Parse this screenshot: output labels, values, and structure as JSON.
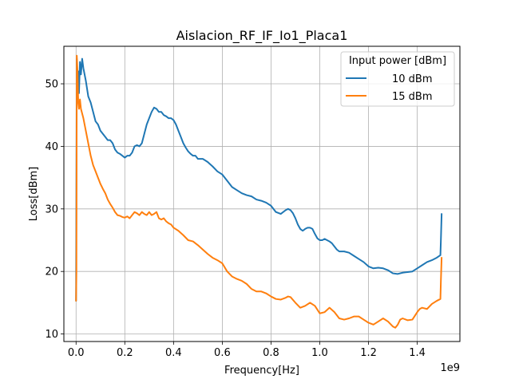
{
  "chart_data": {
    "type": "line",
    "title": "Aislacion_RF_IF_Io1_Placa1",
    "xlabel": "Frequency[Hz]",
    "ylabel": "Loss[dBm]",
    "x_offset_label": "1e9",
    "x_scale": 1000000000,
    "xlim": [
      -50000000,
      1575000000
    ],
    "ylim": [
      8.8,
      56.0
    ],
    "xticks": [
      0,
      200000000,
      400000000,
      600000000,
      800000000,
      1000000000,
      1200000000,
      1400000000
    ],
    "xtick_labels": [
      "0.0",
      "0.2",
      "0.4",
      "0.6",
      "0.8",
      "1.0",
      "1.2",
      "1.4"
    ],
    "yticks": [
      10,
      20,
      30,
      40,
      50
    ],
    "ytick_labels": [
      "10",
      "20",
      "30",
      "40",
      "50"
    ],
    "grid": true,
    "legend": {
      "title": "Input power [dBm]",
      "placement": "top-right"
    },
    "series": [
      {
        "name": "10 dBm",
        "color": "#1f77b4",
        "points": [
          [
            0,
            15.3
          ],
          [
            3000000,
            54.0
          ],
          [
            6000000,
            49.0
          ],
          [
            9000000,
            52.0
          ],
          [
            12000000,
            48.5
          ],
          [
            16000000,
            53.5
          ],
          [
            20000000,
            51.5
          ],
          [
            25000000,
            54.0
          ],
          [
            30000000,
            52.5
          ],
          [
            40000000,
            50.5
          ],
          [
            50000000,
            48.0
          ],
          [
            60000000,
            47.0
          ],
          [
            70000000,
            45.5
          ],
          [
            80000000,
            44.0
          ],
          [
            90000000,
            43.5
          ],
          [
            100000000,
            42.5
          ],
          [
            110000000,
            42.0
          ],
          [
            120000000,
            41.5
          ],
          [
            130000000,
            41.0
          ],
          [
            140000000,
            41.0
          ],
          [
            150000000,
            40.5
          ],
          [
            160000000,
            39.5
          ],
          [
            170000000,
            39.0
          ],
          [
            180000000,
            38.8
          ],
          [
            190000000,
            38.5
          ],
          [
            200000000,
            38.2
          ],
          [
            210000000,
            38.5
          ],
          [
            220000000,
            38.5
          ],
          [
            230000000,
            39.0
          ],
          [
            240000000,
            40.0
          ],
          [
            250000000,
            40.2
          ],
          [
            260000000,
            40.0
          ],
          [
            270000000,
            40.5
          ],
          [
            280000000,
            42.0
          ],
          [
            290000000,
            43.5
          ],
          [
            300000000,
            44.5
          ],
          [
            310000000,
            45.5
          ],
          [
            320000000,
            46.2
          ],
          [
            330000000,
            46.0
          ],
          [
            340000000,
            45.5
          ],
          [
            350000000,
            45.5
          ],
          [
            360000000,
            45.0
          ],
          [
            370000000,
            44.8
          ],
          [
            380000000,
            44.5
          ],
          [
            390000000,
            44.5
          ],
          [
            400000000,
            44.2
          ],
          [
            410000000,
            43.5
          ],
          [
            420000000,
            42.5
          ],
          [
            430000000,
            41.5
          ],
          [
            440000000,
            40.5
          ],
          [
            450000000,
            39.8
          ],
          [
            460000000,
            39.2
          ],
          [
            470000000,
            38.8
          ],
          [
            480000000,
            38.5
          ],
          [
            490000000,
            38.5
          ],
          [
            500000000,
            38.0
          ],
          [
            520000000,
            38.0
          ],
          [
            540000000,
            37.5
          ],
          [
            560000000,
            36.8
          ],
          [
            580000000,
            36.0
          ],
          [
            600000000,
            35.5
          ],
          [
            620000000,
            34.5
          ],
          [
            640000000,
            33.5
          ],
          [
            660000000,
            33.0
          ],
          [
            680000000,
            32.5
          ],
          [
            700000000,
            32.2
          ],
          [
            720000000,
            32.0
          ],
          [
            740000000,
            31.5
          ],
          [
            760000000,
            31.3
          ],
          [
            780000000,
            31.0
          ],
          [
            800000000,
            30.5
          ],
          [
            820000000,
            29.5
          ],
          [
            840000000,
            29.2
          ],
          [
            860000000,
            29.8
          ],
          [
            870000000,
            30.0
          ],
          [
            880000000,
            29.8
          ],
          [
            890000000,
            29.3
          ],
          [
            900000000,
            28.5
          ],
          [
            910000000,
            27.5
          ],
          [
            920000000,
            26.8
          ],
          [
            930000000,
            26.5
          ],
          [
            940000000,
            26.8
          ],
          [
            950000000,
            27.0
          ],
          [
            960000000,
            27.0
          ],
          [
            970000000,
            26.8
          ],
          [
            980000000,
            26.0
          ],
          [
            990000000,
            25.3
          ],
          [
            1000000000,
            25.0
          ],
          [
            1010000000,
            25.0
          ],
          [
            1020000000,
            25.2
          ],
          [
            1030000000,
            25.0
          ],
          [
            1040000000,
            24.8
          ],
          [
            1050000000,
            24.5
          ],
          [
            1060000000,
            24.0
          ],
          [
            1070000000,
            23.5
          ],
          [
            1080000000,
            23.2
          ],
          [
            1100000000,
            23.2
          ],
          [
            1120000000,
            23.0
          ],
          [
            1140000000,
            22.5
          ],
          [
            1160000000,
            22.0
          ],
          [
            1180000000,
            21.5
          ],
          [
            1200000000,
            20.8
          ],
          [
            1220000000,
            20.5
          ],
          [
            1240000000,
            20.6
          ],
          [
            1260000000,
            20.5
          ],
          [
            1280000000,
            20.2
          ],
          [
            1300000000,
            19.7
          ],
          [
            1320000000,
            19.6
          ],
          [
            1340000000,
            19.8
          ],
          [
            1360000000,
            19.9
          ],
          [
            1380000000,
            20.0
          ],
          [
            1400000000,
            20.5
          ],
          [
            1420000000,
            21.0
          ],
          [
            1440000000,
            21.5
          ],
          [
            1460000000,
            21.8
          ],
          [
            1480000000,
            22.2
          ],
          [
            1495000000,
            22.6
          ],
          [
            1497000000,
            25.0
          ],
          [
            1500000000,
            29.2
          ]
        ]
      },
      {
        "name": "15 dBm",
        "color": "#ff7f0e",
        "points": [
          [
            0,
            15.3
          ],
          [
            1500000,
            20.0
          ],
          [
            3000000,
            54.5
          ],
          [
            6000000,
            52.0
          ],
          [
            9000000,
            47.0
          ],
          [
            12000000,
            46.0
          ],
          [
            16000000,
            47.5
          ],
          [
            20000000,
            46.0
          ],
          [
            30000000,
            44.5
          ],
          [
            40000000,
            42.5
          ],
          [
            50000000,
            40.5
          ],
          [
            60000000,
            38.5
          ],
          [
            70000000,
            37.0
          ],
          [
            80000000,
            36.0
          ],
          [
            90000000,
            35.0
          ],
          [
            100000000,
            34.0
          ],
          [
            110000000,
            33.2
          ],
          [
            120000000,
            32.5
          ],
          [
            130000000,
            31.5
          ],
          [
            140000000,
            30.8
          ],
          [
            150000000,
            30.2
          ],
          [
            160000000,
            29.5
          ],
          [
            170000000,
            29.0
          ],
          [
            180000000,
            28.9
          ],
          [
            190000000,
            28.7
          ],
          [
            200000000,
            28.6
          ],
          [
            210000000,
            28.8
          ],
          [
            220000000,
            28.5
          ],
          [
            230000000,
            29.0
          ],
          [
            240000000,
            29.5
          ],
          [
            250000000,
            29.3
          ],
          [
            260000000,
            29.0
          ],
          [
            270000000,
            29.5
          ],
          [
            280000000,
            29.2
          ],
          [
            290000000,
            29.0
          ],
          [
            300000000,
            29.5
          ],
          [
            310000000,
            29.0
          ],
          [
            320000000,
            29.2
          ],
          [
            330000000,
            29.5
          ],
          [
            340000000,
            28.5
          ],
          [
            350000000,
            28.3
          ],
          [
            360000000,
            28.5
          ],
          [
            370000000,
            28.0
          ],
          [
            380000000,
            27.7
          ],
          [
            390000000,
            27.5
          ],
          [
            400000000,
            27.0
          ],
          [
            420000000,
            26.5
          ],
          [
            440000000,
            25.8
          ],
          [
            460000000,
            25.0
          ],
          [
            480000000,
            24.8
          ],
          [
            500000000,
            24.2
          ],
          [
            520000000,
            23.5
          ],
          [
            540000000,
            22.8
          ],
          [
            560000000,
            22.2
          ],
          [
            580000000,
            21.8
          ],
          [
            600000000,
            21.3
          ],
          [
            620000000,
            20.0
          ],
          [
            640000000,
            19.2
          ],
          [
            660000000,
            18.8
          ],
          [
            680000000,
            18.5
          ],
          [
            700000000,
            18.0
          ],
          [
            720000000,
            17.2
          ],
          [
            740000000,
            16.8
          ],
          [
            760000000,
            16.8
          ],
          [
            780000000,
            16.5
          ],
          [
            800000000,
            16.0
          ],
          [
            820000000,
            15.6
          ],
          [
            840000000,
            15.5
          ],
          [
            860000000,
            15.8
          ],
          [
            870000000,
            16.0
          ],
          [
            880000000,
            15.9
          ],
          [
            900000000,
            15.0
          ],
          [
            920000000,
            14.2
          ],
          [
            940000000,
            14.5
          ],
          [
            960000000,
            15.0
          ],
          [
            980000000,
            14.5
          ],
          [
            1000000000,
            13.3
          ],
          [
            1020000000,
            13.5
          ],
          [
            1040000000,
            14.2
          ],
          [
            1060000000,
            13.5
          ],
          [
            1080000000,
            12.5
          ],
          [
            1100000000,
            12.3
          ],
          [
            1120000000,
            12.5
          ],
          [
            1140000000,
            12.8
          ],
          [
            1160000000,
            12.8
          ],
          [
            1180000000,
            12.3
          ],
          [
            1200000000,
            11.8
          ],
          [
            1220000000,
            11.5
          ],
          [
            1240000000,
            12.0
          ],
          [
            1260000000,
            12.5
          ],
          [
            1280000000,
            12.0
          ],
          [
            1300000000,
            11.2
          ],
          [
            1310000000,
            11.0
          ],
          [
            1320000000,
            11.5
          ],
          [
            1330000000,
            12.3
          ],
          [
            1340000000,
            12.5
          ],
          [
            1360000000,
            12.2
          ],
          [
            1380000000,
            12.3
          ],
          [
            1400000000,
            13.5
          ],
          [
            1410000000,
            14.0
          ],
          [
            1420000000,
            14.2
          ],
          [
            1440000000,
            14.0
          ],
          [
            1460000000,
            14.8
          ],
          [
            1480000000,
            15.3
          ],
          [
            1495000000,
            15.6
          ],
          [
            1497000000,
            18.5
          ],
          [
            1500000000,
            22.2
          ]
        ]
      }
    ]
  }
}
